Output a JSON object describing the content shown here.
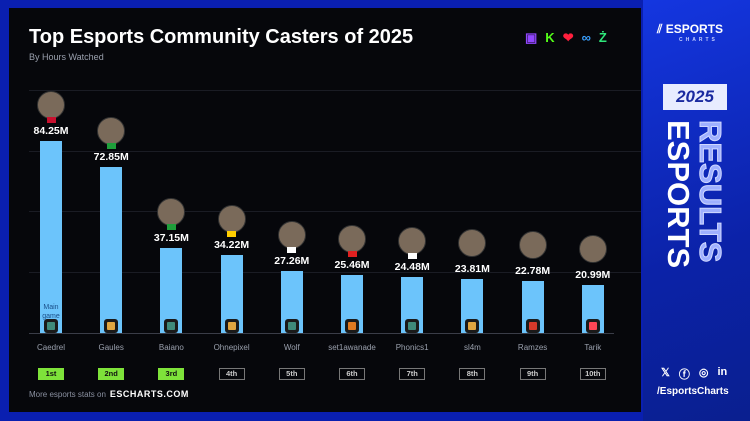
{
  "header": {
    "title": "Top Esports Community Casters of 2025",
    "subtitle": "By Hours Watched"
  },
  "platforms": [
    {
      "icon": "twitch-icon",
      "glyph": "▣",
      "color": "#9146ff"
    },
    {
      "icon": "kick-icon",
      "glyph": "K",
      "color": "#53fc18"
    },
    {
      "icon": "heart-icon",
      "glyph": "❤",
      "color": "#ff1f3d"
    },
    {
      "icon": "infinity-icon",
      "glyph": "∞",
      "color": "#3aa0ff"
    },
    {
      "icon": "z-icon",
      "glyph": "Ż",
      "color": "#2ee87a"
    }
  ],
  "chart_data": {
    "type": "bar",
    "categories": [
      "Caedrel",
      "Gaules",
      "Baiano",
      "Ohnepixel",
      "Wolf",
      "set1awanade",
      "Phonics1",
      "sl4m",
      "Ramzes",
      "Tarik"
    ],
    "values": [
      84.25,
      72.85,
      37.15,
      34.22,
      27.26,
      25.46,
      24.48,
      23.81,
      22.78,
      20.99
    ],
    "labels": [
      "84.25M",
      "72.85M",
      "37.15M",
      "34.22M",
      "27.26M",
      "25.46M",
      "24.48M",
      "23.81M",
      "22.78M",
      "20.99M"
    ],
    "ranks": [
      "1st",
      "2nd",
      "3rd",
      "4th",
      "5th",
      "6th",
      "7th",
      "8th",
      "9th",
      "10th"
    ],
    "main_game": [
      "League of Legends",
      "Counter-Strike",
      "League of Legends",
      "Counter-Strike",
      "League of Legends",
      "Other",
      "League of Legends",
      "Counter-Strike",
      "Dota 2",
      "Valorant"
    ],
    "flags": [
      "United Kingdom",
      "Brazil",
      "Brazil",
      "Germany",
      "South Korea",
      "Indonesia",
      "South Korea",
      "",
      "",
      ""
    ],
    "bar_color": "#6cc4fb",
    "top3_rank_color": "#7ee23a",
    "main_game_label": "Main game",
    "unit": "M"
  },
  "footer": {
    "text": "More esports stats on",
    "site": "ESCHARTS.COM"
  },
  "sidebar": {
    "logo": "ESPORTS",
    "logo_sub": "CHARTS",
    "year": "2025",
    "vertical_1": "ESPORTS",
    "vertical_2": "RESULTS",
    "handle": "/EsportsCharts",
    "social": [
      "x-icon",
      "facebook-icon",
      "instagram-icon",
      "linkedin-icon"
    ]
  }
}
